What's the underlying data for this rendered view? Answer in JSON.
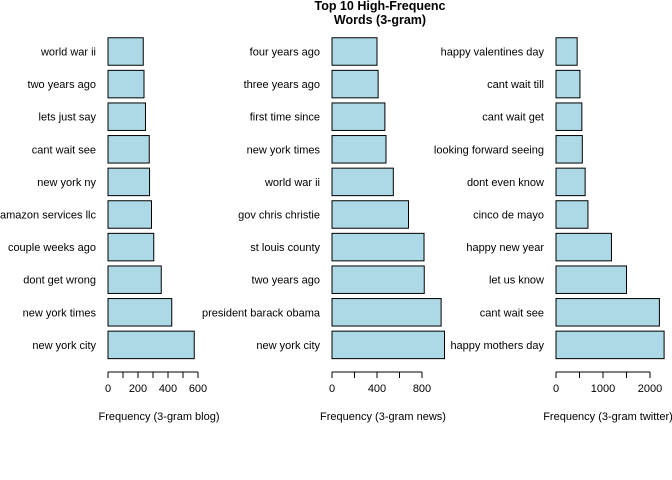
{
  "title_lines": [
    "Top 10 High-Frequenc",
    "Words (3-gram)"
  ],
  "colors": {
    "bar_fill": "#add8e6",
    "bar_stroke": "#000000"
  },
  "chart_data": [
    {
      "type": "bar",
      "orientation": "horizontal",
      "xlabel": "Frequency (3-gram blog)",
      "xlim": [
        0,
        600
      ],
      "xticks": [
        0,
        200,
        400,
        600
      ],
      "categories": [
        "new york city",
        "new york times",
        "dont get wrong",
        "couple weeks ago",
        "amazon services llc",
        "new york ny",
        "cant wait see",
        "lets just say",
        "two years ago",
        "world war ii"
      ],
      "values": [
        575,
        425,
        355,
        305,
        290,
        277,
        275,
        250,
        240,
        235
      ]
    },
    {
      "type": "bar",
      "orientation": "horizontal",
      "xlabel": "Frequency (3-gram news)",
      "xlim": [
        0,
        800
      ],
      "xticks": [
        0,
        400,
        800
      ],
      "categories": [
        "new york city",
        "president barack obama",
        "two years ago",
        "st louis county",
        "gov chris christie",
        "world war ii",
        "new york times",
        "first time since",
        "three years ago",
        "four years ago"
      ],
      "values": [
        1000,
        970,
        820,
        818,
        680,
        545,
        480,
        470,
        410,
        400
      ]
    },
    {
      "type": "bar",
      "orientation": "horizontal",
      "xlabel": "Frequency (3-gram twitter)",
      "xlim": [
        0,
        2000
      ],
      "xticks": [
        0,
        1000,
        2000
      ],
      "categories": [
        "happy mothers day",
        "cant wait see",
        "let us know",
        "happy new year",
        "cinco de mayo",
        "dont even know",
        "looking forward seeing",
        "cant wait get",
        "cant wait till",
        "happy valentines day"
      ],
      "values": [
        2300,
        2200,
        1500,
        1180,
        680,
        620,
        560,
        550,
        510,
        450
      ]
    }
  ]
}
